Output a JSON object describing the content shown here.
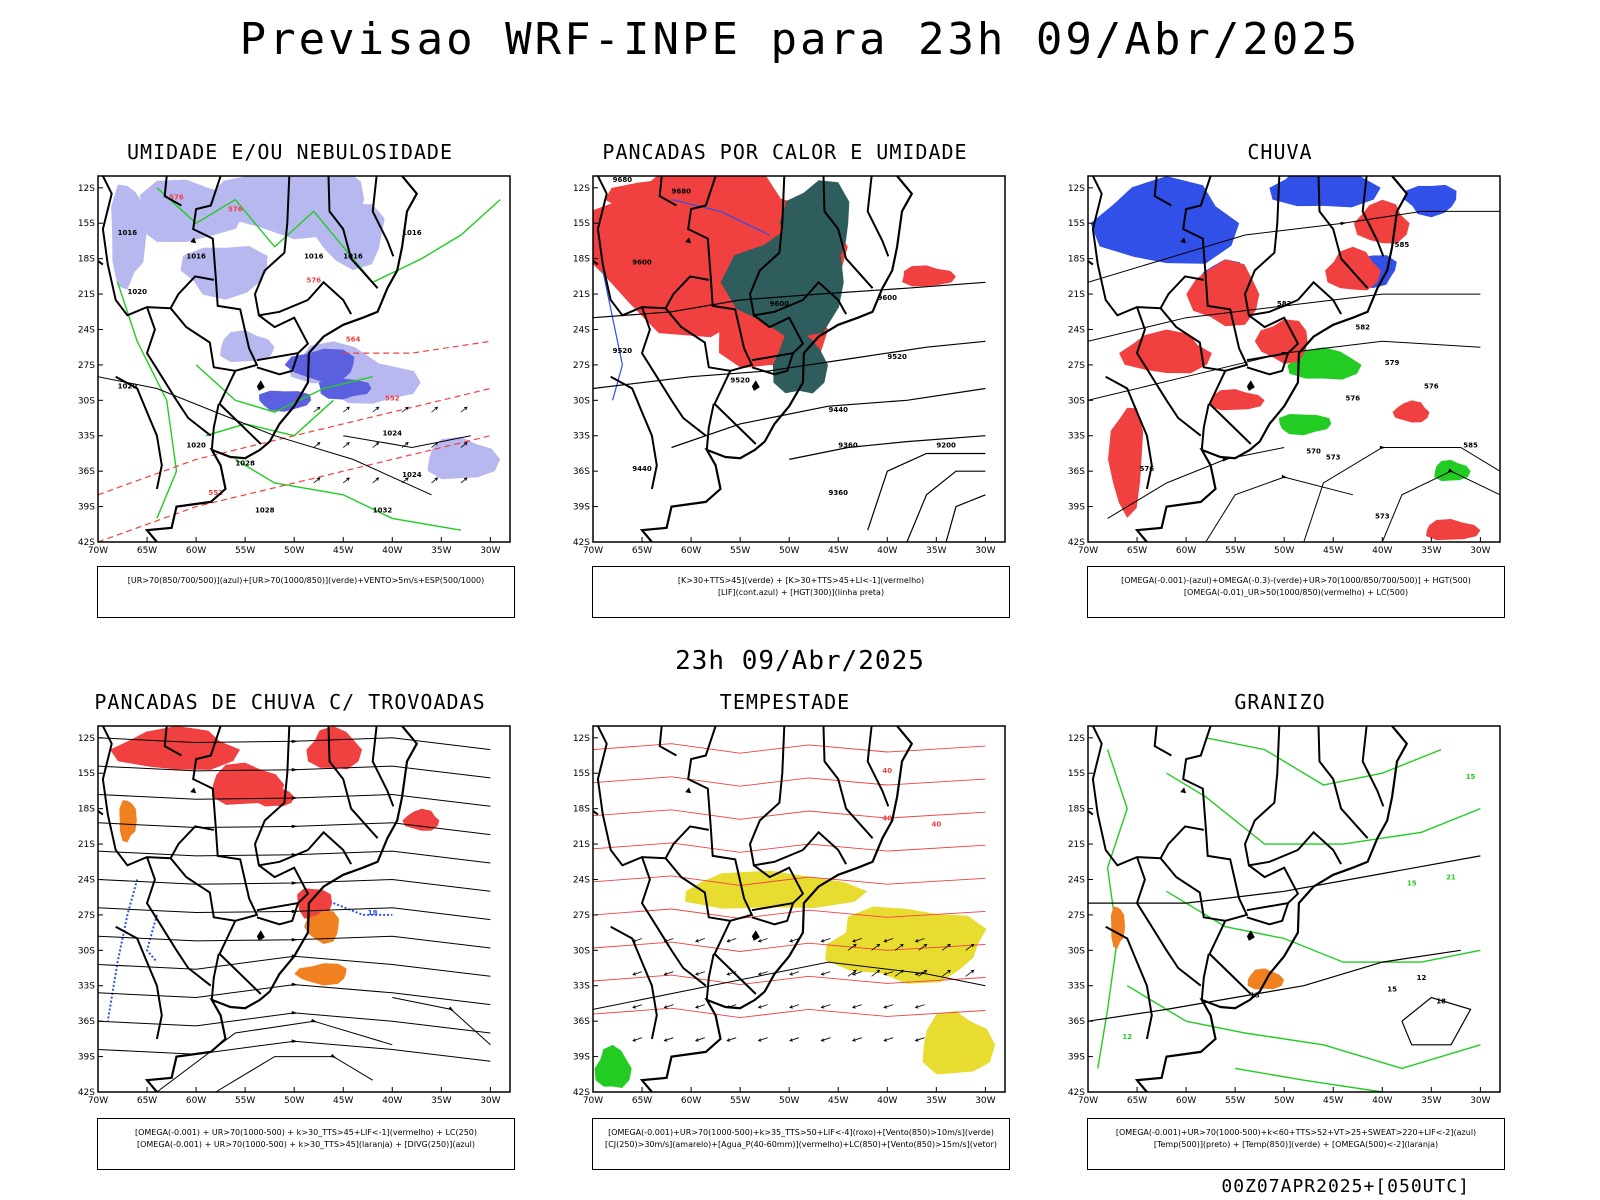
{
  "main_title": "Previsao WRF-INPE  para 23h 09/Abr/2025",
  "mid_date": "23h 09/Abr/2025",
  "footer": "00Z07APR2025+[050UTC]",
  "colors": {
    "blue_area": "#b8b8f0",
    "blue_dark": "#3050e8",
    "green": "#22cc22",
    "red": "#f04040",
    "dark_teal": "#2f5d5d",
    "orange": "#f08020",
    "yellow": "#e8dc30",
    "black": "#000000"
  },
  "axes": {
    "lon_ticks": [
      "70W",
      "65W",
      "60W",
      "55W",
      "50W",
      "45W",
      "40W",
      "35W",
      "30W"
    ],
    "lat_ticks": [
      "12S",
      "15S",
      "18S",
      "21S",
      "24S",
      "27S",
      "30S",
      "33S",
      "36S",
      "39S",
      "42S"
    ]
  },
  "panels": [
    {
      "title": "UMIDADE E/OU NEBULOSIDADE",
      "legend": [
        "[UR>70(850/700/500)](azul)+[UR>70(1000/850)](verde)+VENTO>5m/s+ESP(500/1000)"
      ],
      "labels": [
        "1016",
        "1016",
        "1016",
        "1016",
        "1016",
        "1020",
        "1020",
        "1020",
        "1024",
        "1024",
        "1028",
        "1028",
        "1032",
        "576",
        "576",
        "576",
        "564",
        "552",
        "552"
      ]
    },
    {
      "title": "PANCADAS POR CALOR E UMIDADE",
      "legend": [
        "[K>30+TTS>45](verde) + [K>30+TTS>45+LI<-1](vermelho)",
        "[LIF](cont.azul) + [HGT(300)](linha preta)"
      ],
      "labels": [
        "9680",
        "9680",
        "9600",
        "9600",
        "9600",
        "9520",
        "9520",
        "9520",
        "9440",
        "9440",
        "9360",
        "9360",
        "9200"
      ]
    },
    {
      "title": "CHUVA",
      "legend": [
        "[OMEGA(-0.001)-(azul)+OMEGA(-0.3)-(verde)+UR>70(1000/850/700/500)] + HGT(500)",
        "[OMEGA(-0.01)_UR>50(1000/850)(vermelho) + LC(500)"
      ],
      "labels": [
        "585",
        "582",
        "582",
        "579",
        "576",
        "573",
        "573",
        "570",
        "576",
        "576",
        "585"
      ]
    },
    {
      "title": "PANCADAS DE CHUVA C/ TROVOADAS",
      "legend": [
        "[OMEGA(-0.001) + UR>70(1000-500) + k>30_TTS>45+LIF<-1](vermelho) + LC(250)",
        "[OMEGA(-0.001) + UR>70(1000-500) + k>30_TTS>45](laranja) + [DIVG(250)](azul)"
      ],
      "labels": [
        "18"
      ]
    },
    {
      "title": "TEMPESTADE",
      "legend": [
        "[OMEGA(-0.001)+UR>70(1000-500)+k>35_TTS>50+LIF<-4](roxo)+[Vento(850)>10m/s](verde)",
        "[CJ(250)>30m/s](amarelo)+[Agua_P(40-60mm)](vermelho)+LC(850)+[Vento(850)>15m/s](vetor)"
      ],
      "labels": [
        "40",
        "40",
        "40"
      ]
    },
    {
      "title": "GRANIZO",
      "legend": [
        "[OMEGA(-0.001)+UR>70(1000-500)+k<60+TTS>52+VT>25+SWEAT>220+LIF<-2](azul)",
        "[Temp(500)](preto) + [Temp(850)](verde) + [OMEGA(500)<-2](laranja)"
      ],
      "labels": [
        "12",
        "15",
        "15",
        "18",
        "21",
        "12",
        "15",
        "15"
      ]
    }
  ]
}
